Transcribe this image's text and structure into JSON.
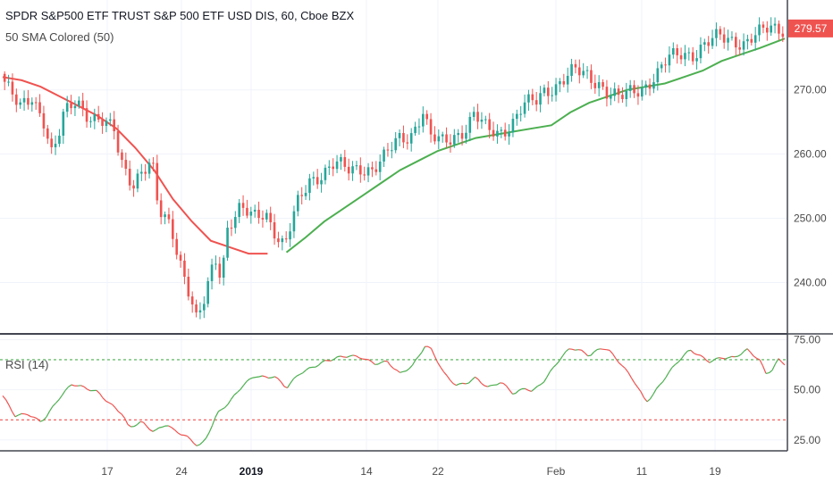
{
  "header": {
    "title": "SPDR S&P500 ETF TRUST S&P 500 ETF USD DIS, 60, Cboe BZX",
    "indicator": "50 SMA Colored (50)"
  },
  "rsi_panel": {
    "label": "RSI (14)"
  },
  "price_badge": {
    "value": "279.57",
    "color": "#ef5350"
  },
  "colors": {
    "up": "#26a69a",
    "down": "#ef5350",
    "sma_up": "#4caf50",
    "sma_down": "#ef5350",
    "rsi_up": "#4caf50",
    "rsi_down": "#ef5350"
  },
  "chart_data": [
    {
      "type": "candlestick",
      "title": "SPDR S&P500 ETF TRUST S&P 500 ETF USD DIS, 60, Cboe BZX",
      "ylim": [
        232,
        284
      ],
      "y_ticks": [
        "270.00",
        "260.00",
        "250.00",
        "240.00"
      ],
      "x_ticks": [
        "17",
        "24",
        "2019",
        "14",
        "22",
        "Feb",
        "11",
        "19"
      ],
      "last_price": 279.57,
      "price_path": [
        [
          0,
          272.5
        ],
        [
          1,
          270.5
        ],
        [
          3,
          267
        ],
        [
          5,
          269
        ],
        [
          7,
          265
        ],
        [
          8,
          260
        ],
        [
          9,
          262
        ],
        [
          10,
          266
        ],
        [
          12,
          268.5
        ],
        [
          14,
          266
        ],
        [
          16,
          265
        ],
        [
          18,
          263.5
        ],
        [
          19,
          259
        ],
        [
          21,
          255.5
        ],
        [
          22,
          257
        ],
        [
          24,
          258.5
        ],
        [
          25,
          251
        ],
        [
          27,
          249
        ],
        [
          28,
          245
        ],
        [
          30,
          238
        ],
        [
          31,
          234
        ],
        [
          32,
          236
        ],
        [
          34,
          244
        ],
        [
          35,
          241
        ],
        [
          36,
          249
        ],
        [
          38,
          251.5
        ],
        [
          40,
          250
        ],
        [
          42,
          251
        ],
        [
          44,
          247
        ],
        [
          45,
          245.5
        ],
        [
          47,
          252
        ],
        [
          49,
          256
        ],
        [
          51,
          257
        ],
        [
          53,
          258.5
        ],
        [
          55,
          257.5
        ],
        [
          57,
          258
        ],
        [
          59,
          257.5
        ],
        [
          61,
          259.5
        ],
        [
          63,
          262.5
        ],
        [
          65,
          263
        ],
        [
          67,
          266.5
        ],
        [
          68,
          262.5
        ],
        [
          70,
          262
        ],
        [
          72,
          263
        ],
        [
          74,
          264
        ],
        [
          75,
          266
        ],
        [
          77,
          264
        ],
        [
          79,
          263.5
        ],
        [
          81,
          264.5
        ],
        [
          83,
          267.5
        ],
        [
          85,
          268.5
        ],
        [
          86,
          270
        ],
        [
          88,
          270.5
        ],
        [
          90,
          272
        ],
        [
          91,
          273
        ],
        [
          93,
          272.5
        ],
        [
          95,
          271
        ],
        [
          96,
          269.5
        ],
        [
          98,
          268.5
        ],
        [
          100,
          270
        ],
        [
          102,
          270.5
        ],
        [
          104,
          272
        ],
        [
          106,
          275
        ],
        [
          108,
          276
        ],
        [
          110,
          275.5
        ],
        [
          112,
          277
        ],
        [
          114,
          278.5
        ],
        [
          116,
          278
        ],
        [
          118,
          277
        ],
        [
          120,
          278.5
        ],
        [
          122,
          280
        ],
        [
          124,
          279.6
        ]
      ],
      "sma_50": [
        [
          0,
          272
        ],
        [
          3,
          271.5
        ],
        [
          6,
          270.5
        ],
        [
          9,
          269
        ],
        [
          12,
          267.5
        ],
        [
          15,
          266
        ],
        [
          18,
          264
        ],
        [
          21,
          261
        ],
        [
          24,
          257.5
        ],
        [
          27,
          253
        ],
        [
          30,
          249.5
        ],
        [
          33,
          246.5
        ],
        [
          36,
          245.5
        ],
        [
          39,
          244.5
        ],
        [
          42,
          244.5
        ],
        [
          45,
          244.7
        ],
        [
          48,
          247
        ],
        [
          51,
          249.5
        ],
        [
          54,
          251.5
        ],
        [
          57,
          253.5
        ],
        [
          60,
          255.5
        ],
        [
          63,
          257.5
        ],
        [
          66,
          259
        ],
        [
          69,
          260.5
        ],
        [
          72,
          261.5
        ],
        [
          75,
          262.5
        ],
        [
          78,
          263
        ],
        [
          81,
          263.5
        ],
        [
          84,
          264
        ],
        [
          87,
          264.5
        ],
        [
          90,
          266.5
        ],
        [
          93,
          268
        ],
        [
          96,
          269
        ],
        [
          99,
          270
        ],
        [
          102,
          270.5
        ],
        [
          105,
          271
        ],
        [
          108,
          272
        ],
        [
          111,
          273
        ],
        [
          114,
          274.5
        ],
        [
          117,
          275.5
        ],
        [
          120,
          276.5
        ],
        [
          124,
          278
        ]
      ],
      "sma_turn_index": 44
    },
    {
      "type": "line",
      "title": "RSI (14)",
      "ylim": [
        20,
        77
      ],
      "y_ticks": [
        "75.00",
        "50.00",
        "25.00"
      ],
      "upper_band": 65,
      "lower_band": 35,
      "rsi": [
        [
          0,
          47
        ],
        [
          1,
          42
        ],
        [
          2,
          37
        ],
        [
          4,
          38
        ],
        [
          6,
          34
        ],
        [
          7,
          37
        ],
        [
          9,
          46
        ],
        [
          11,
          53
        ],
        [
          13,
          51
        ],
        [
          15,
          49
        ],
        [
          17,
          43
        ],
        [
          19,
          38
        ],
        [
          20,
          31
        ],
        [
          22,
          34
        ],
        [
          24,
          29
        ],
        [
          26,
          33
        ],
        [
          27,
          30
        ],
        [
          29,
          27
        ],
        [
          31,
          22
        ],
        [
          32,
          24
        ],
        [
          34,
          38
        ],
        [
          36,
          44
        ],
        [
          38,
          52
        ],
        [
          40,
          57
        ],
        [
          42,
          56
        ],
        [
          43,
          57
        ],
        [
          45,
          51
        ],
        [
          47,
          58
        ],
        [
          49,
          61
        ],
        [
          51,
          64
        ],
        [
          53,
          66
        ],
        [
          55,
          67
        ],
        [
          57,
          66
        ],
        [
          59,
          63
        ],
        [
          61,
          64
        ],
        [
          63,
          58
        ],
        [
          65,
          62
        ],
        [
          67,
          72
        ],
        [
          68,
          70
        ],
        [
          70,
          58
        ],
        [
          72,
          52
        ],
        [
          74,
          54
        ],
        [
          75,
          56
        ],
        [
          77,
          51
        ],
        [
          79,
          54
        ],
        [
          81,
          48
        ],
        [
          83,
          51
        ],
        [
          84,
          49
        ],
        [
          86,
          55
        ],
        [
          88,
          64
        ],
        [
          90,
          71
        ],
        [
          92,
          69
        ],
        [
          93,
          67
        ],
        [
          95,
          71
        ],
        [
          96,
          70
        ],
        [
          98,
          63
        ],
        [
          100,
          55
        ],
        [
          102,
          44
        ],
        [
          103,
          47
        ],
        [
          105,
          56
        ],
        [
          107,
          64
        ],
        [
          109,
          70
        ],
        [
          110,
          68
        ],
        [
          112,
          64
        ],
        [
          114,
          66
        ],
        [
          116,
          66
        ],
        [
          118,
          70
        ],
        [
          120,
          65
        ],
        [
          121,
          58
        ],
        [
          122,
          60
        ],
        [
          123,
          65
        ],
        [
          124,
          63
        ]
      ]
    }
  ]
}
